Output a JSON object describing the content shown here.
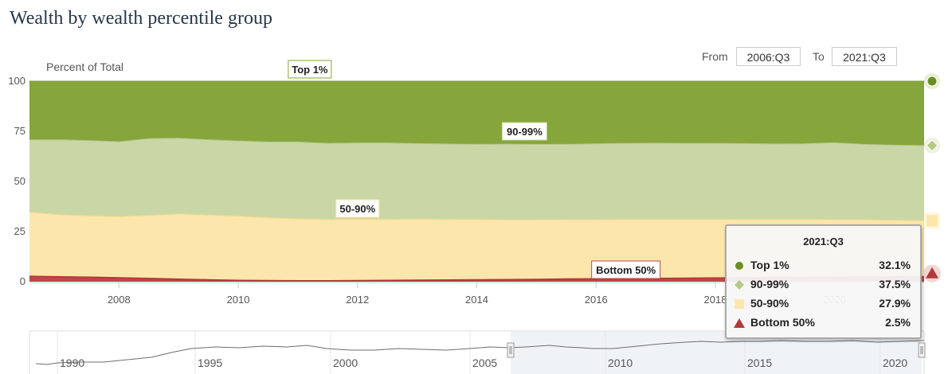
{
  "page": {
    "title": "Wealth by wealth percentile group"
  },
  "range": {
    "from_label": "From",
    "from_value": "2006:Q3",
    "to_label": "To",
    "to_value": "2021:Q3"
  },
  "colors": {
    "top1": "#86a53b",
    "p90_99": "#c9d7a6",
    "p50_90": "#fde6ac",
    "bottom50": "#c0474b",
    "tooltip_border": "#a9a9a9"
  },
  "chart_data": {
    "type": "area",
    "stacked": true,
    "ylabel": "Percent of Total",
    "ylim": [
      0,
      100
    ],
    "yticks": [
      0,
      25,
      50,
      75,
      100
    ],
    "xlim": [
      2006.5,
      2021.5
    ],
    "xticks": [
      2008,
      2010,
      2012,
      2014,
      2016,
      2018,
      2020
    ],
    "grid": false,
    "x": [
      2006.5,
      2007.0,
      2007.5,
      2008.0,
      2008.5,
      2009.0,
      2009.5,
      2010.0,
      2010.5,
      2011.0,
      2011.5,
      2012.0,
      2012.5,
      2013.0,
      2013.5,
      2014.0,
      2014.5,
      2015.0,
      2015.5,
      2016.0,
      2016.5,
      2017.0,
      2017.5,
      2018.0,
      2018.5,
      2019.0,
      2019.5,
      2020.0,
      2020.5,
      2021.0,
      2021.5
    ],
    "series": [
      {
        "name": "Bottom 50%",
        "color": "#c0474b",
        "values": [
          2.6,
          2.4,
          2.2,
          1.9,
          1.6,
          1.2,
          0.9,
          0.6,
          0.5,
          0.4,
          0.4,
          0.5,
          0.6,
          0.7,
          0.8,
          0.9,
          1.0,
          1.1,
          1.3,
          1.4,
          1.5,
          1.6,
          1.7,
          1.8,
          1.9,
          2.0,
          2.1,
          2.2,
          2.3,
          2.4,
          2.5
        ]
      },
      {
        "name": "50-90%",
        "color": "#fde6ac",
        "values": [
          32.0,
          31.0,
          30.6,
          30.5,
          31.4,
          32.6,
          32.3,
          32.0,
          31.4,
          30.9,
          30.7,
          30.6,
          30.5,
          30.5,
          30.3,
          30.1,
          29.8,
          29.7,
          29.6,
          29.5,
          29.5,
          29.4,
          29.3,
          29.2,
          29.2,
          29.1,
          29.0,
          28.7,
          28.6,
          28.2,
          27.9
        ]
      },
      {
        "name": "90-99%",
        "color": "#c9d7a6",
        "values": [
          36.1,
          37.4,
          37.6,
          37.4,
          38.3,
          37.8,
          37.6,
          37.6,
          37.8,
          38.4,
          37.9,
          38.1,
          38.1,
          37.7,
          37.6,
          37.5,
          37.8,
          37.7,
          37.6,
          37.9,
          38.0,
          38.1,
          38.0,
          38.0,
          37.8,
          37.6,
          37.7,
          38.4,
          37.6,
          37.5,
          37.5
        ]
      },
      {
        "name": "Top 1%",
        "color": "#86a53b",
        "values": [
          29.3,
          29.2,
          29.6,
          30.2,
          28.7,
          28.4,
          29.2,
          29.8,
          30.3,
          30.3,
          31.0,
          30.8,
          30.8,
          31.1,
          31.3,
          31.5,
          31.4,
          31.5,
          31.5,
          31.2,
          31.0,
          30.9,
          31.0,
          31.0,
          31.1,
          31.3,
          31.2,
          30.7,
          31.5,
          31.9,
          32.1
        ]
      }
    ],
    "annotations": [
      {
        "text": "Top 1%",
        "x": 2011.2,
        "color": "#86a53b"
      },
      {
        "text": "90-99%",
        "x": 2014.8,
        "color": "#c9d7a6"
      },
      {
        "text": "50-90%",
        "x": 2012.0,
        "color": "#fde6ac"
      },
      {
        "text": "Bottom 50%",
        "x": 2016.5,
        "color": "#c0474b"
      }
    ],
    "navigator": {
      "xticks": [
        "1990",
        "1995",
        "2000",
        "2005",
        "2010",
        "2015",
        "2020"
      ],
      "selected_range": [
        "2006:Q3",
        "2021:Q3"
      ]
    },
    "tooltip": {
      "title": "2021:Q3",
      "rows": [
        {
          "name": "Top 1%",
          "value": "32.1%",
          "marker": "circle",
          "color": "#6b8e23"
        },
        {
          "name": "90-99%",
          "value": "37.5%",
          "marker": "diamond",
          "color": "#b7c98a"
        },
        {
          "name": "50-90%",
          "value": "27.9%",
          "marker": "square",
          "color": "#fde6ac"
        },
        {
          "name": "Bottom 50%",
          "value": "2.5%",
          "marker": "triangle",
          "color": "#b03a3a"
        }
      ]
    }
  }
}
